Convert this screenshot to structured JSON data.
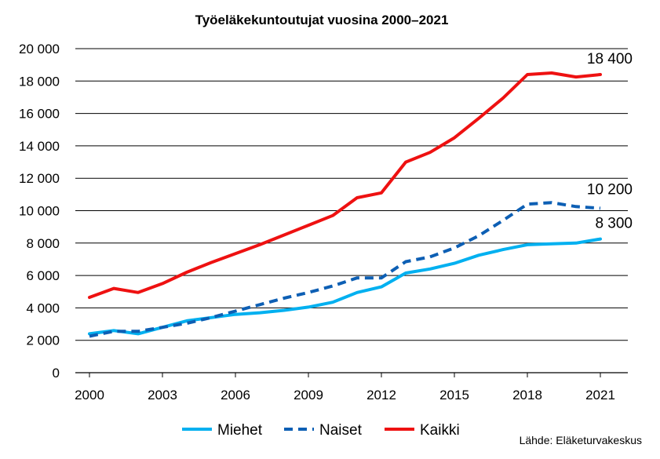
{
  "chart_data": {
    "type": "line",
    "title": "Työeläkekuntoutujat vuosina 2000–2021",
    "xlabel": "",
    "ylabel": "",
    "x": [
      2000,
      2001,
      2002,
      2003,
      2004,
      2005,
      2006,
      2007,
      2008,
      2009,
      2010,
      2011,
      2012,
      2013,
      2014,
      2015,
      2016,
      2017,
      2018,
      2019,
      2020,
      2021
    ],
    "x_tick_labels": [
      "2000",
      "2003",
      "2006",
      "2009",
      "2012",
      "2015",
      "2018",
      "2021"
    ],
    "x_tick_values": [
      2000,
      2003,
      2006,
      2009,
      2012,
      2015,
      2018,
      2021
    ],
    "ylim": [
      0,
      20000
    ],
    "y_tick_values": [
      0,
      2000,
      4000,
      6000,
      8000,
      10000,
      12000,
      14000,
      16000,
      18000,
      20000
    ],
    "y_tick_labels": [
      "0",
      "2 000",
      "4 000",
      "6 000",
      "8 000",
      "10 000",
      "12 000",
      "14 000",
      "16 000",
      "18 000",
      "20 000"
    ],
    "grid": "horizontal",
    "legend_position": "bottom",
    "series": [
      {
        "name": "Miehet",
        "color": "#00b0f0",
        "style": "solid",
        "values": [
          2400,
          2600,
          2400,
          2800,
          3200,
          3400,
          3600,
          3700,
          3850,
          4050,
          4350,
          4950,
          5300,
          6150,
          6400,
          6750,
          7250,
          7600,
          7900,
          7950,
          8000,
          8250
        ]
      },
      {
        "name": "Naiset",
        "color": "#0d5fb4",
        "style": "dashed",
        "values": [
          2250,
          2550,
          2550,
          2800,
          3050,
          3400,
          3800,
          4200,
          4600,
          4950,
          5350,
          5850,
          5850,
          6850,
          7150,
          7700,
          8450,
          9400,
          10400,
          10500,
          10250,
          10150
        ]
      },
      {
        "name": "Kaikki",
        "color": "#ee1111",
        "style": "solid",
        "values": [
          4650,
          5200,
          4950,
          5500,
          6200,
          6800,
          7350,
          7900,
          8500,
          9100,
          9700,
          10800,
          11100,
          13000,
          13600,
          14500,
          15700,
          16950,
          18400,
          18500,
          18250,
          18400
        ]
      }
    ],
    "annotations": [
      {
        "text": "18 400",
        "series": "Kaikki"
      },
      {
        "text": "10 200",
        "series": "Naiset"
      },
      {
        "text": "8 300",
        "series": "Miehet"
      }
    ],
    "source": "Lähde: Eläketurvakeskus"
  }
}
